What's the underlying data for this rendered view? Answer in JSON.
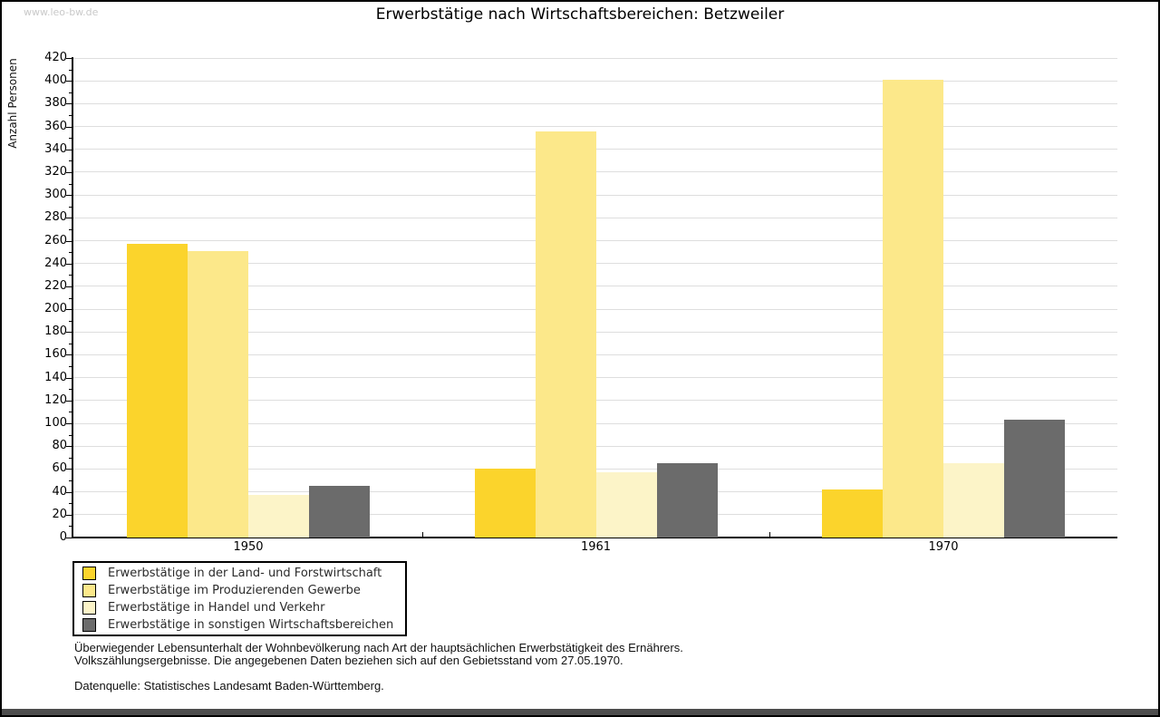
{
  "watermark": "www.leo-bw.de",
  "header": {
    "title": "Erwerbstätige nach Wirtschaftsbereichen: Betzweiler"
  },
  "chart_data": {
    "type": "bar",
    "title": "Erwerbstätige nach Wirtschaftsbereichen: Betzweiler",
    "xlabel": "",
    "ylabel": "Anzahl Personen",
    "categories": [
      "1950",
      "1961",
      "1970"
    ],
    "series": [
      {
        "name": "Erwerbstätige in der Land- und Forstwirtschaft",
        "color": "#fbd42c",
        "values": [
          257,
          60,
          42
        ]
      },
      {
        "name": "Erwerbstätige im Produzierenden Gewerbe",
        "color": "#fce88a",
        "values": [
          251,
          356,
          401
        ]
      },
      {
        "name": "Erwerbstätige in Handel und Verkehr",
        "color": "#fcf4c8",
        "values": [
          37,
          57,
          65
        ]
      },
      {
        "name": "Erwerbstätige in sonstigen Wirtschaftsbereichen",
        "color": "#6b6b6b",
        "values": [
          45,
          65,
          103
        ]
      }
    ],
    "ylim": [
      0,
      420
    ],
    "ytick_step": 20,
    "yminor_step": 10,
    "grid": true,
    "legend_position": "bottom-left"
  },
  "footer": {
    "note_line1": "Überwiegender Lebensunterhalt der Wohnbevölkerung nach Art der hauptsächlichen Erwerbstätigkeit des Ernährers.",
    "note_line2": "Volkszählungsergebnisse. Die angegebenen Daten beziehen sich auf den Gebietsstand vom 27.05.1970.",
    "source": "Datenquelle: Statistisches Landesamt Baden-Württemberg."
  }
}
